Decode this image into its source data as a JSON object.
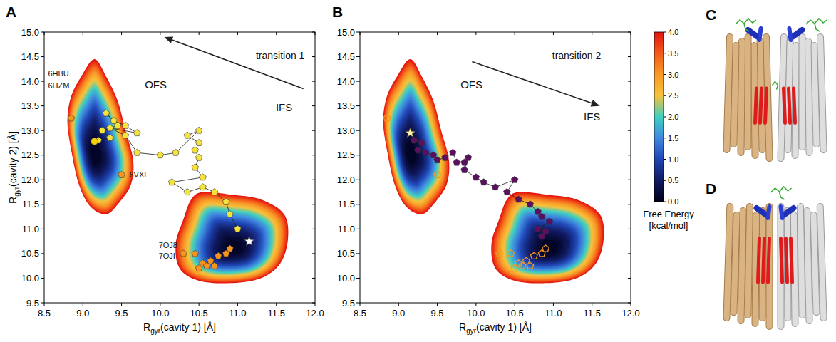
{
  "chart_data": [
    {
      "type": "scatter",
      "title": "A",
      "xlabel": {
        "text": "R",
        "sub": "gyr",
        "tail": "(cavity 1) [Å]"
      },
      "ylabel": {
        "text": "R",
        "sub": "gyr",
        "tail": "(cavity 2) [Å]"
      },
      "xlim": [
        8.5,
        12.0
      ],
      "ylim": [
        9.5,
        15.0
      ],
      "xticks": [
        8.5,
        {
          "value": 9,
          "label": "9.0"
        },
        9.5,
        {
          "value": 10,
          "label": "10.0"
        },
        10.5,
        {
          "value": 11,
          "label": "11.0"
        },
        11.5,
        {
          "value": 12,
          "label": "12.0"
        }
      ],
      "yticks": [
        9.5,
        {
          "value": 10,
          "label": "10.0"
        },
        10.5,
        {
          "value": 11,
          "label": "11.0"
        },
        11.5,
        {
          "value": 12,
          "label": "12.0"
        },
        12.5,
        {
          "value": 13,
          "label": "13.0"
        },
        13.5,
        {
          "value": 14,
          "label": "14.0"
        },
        14.5,
        {
          "value": 15,
          "label": "15.0"
        }
      ],
      "free_energy": [
        {
          "minimum": [
            9.15,
            12.5
          ],
          "boundary": [
            [
              9.15,
              14.45
            ],
            [
              9.3,
              14.1
            ],
            [
              9.45,
              13.6
            ],
            [
              9.55,
              13.0
            ],
            [
              9.65,
              12.4
            ],
            [
              9.62,
              11.9
            ],
            [
              9.45,
              11.5
            ],
            [
              9.3,
              11.3
            ],
            [
              9.1,
              11.45
            ],
            [
              8.95,
              11.9
            ],
            [
              8.85,
              12.6
            ],
            [
              8.8,
              13.2
            ],
            [
              8.85,
              13.7
            ],
            [
              8.98,
              14.1
            ]
          ]
        },
        {
          "minimum": [
            10.95,
            10.6
          ],
          "boundary": [
            [
              10.55,
              11.75
            ],
            [
              10.9,
              11.7
            ],
            [
              11.3,
              11.6
            ],
            [
              11.6,
              11.3
            ],
            [
              11.65,
              10.8
            ],
            [
              11.55,
              10.3
            ],
            [
              11.3,
              10.0
            ],
            [
              10.9,
              9.9
            ],
            [
              10.5,
              9.95
            ],
            [
              10.25,
              10.2
            ],
            [
              10.2,
              10.7
            ],
            [
              10.3,
              11.2
            ],
            [
              10.4,
              11.6
            ]
          ]
        }
      ],
      "series": [
        {
          "type": "scatter",
          "marker": "pentagon",
          "color": "#f7941d",
          "x": [
            8.85,
            9.5,
            10.3,
            10.45,
            10.55,
            10.5,
            10.6,
            10.65,
            10.75,
            10.85,
            10.9,
            10.7
          ],
          "y": [
            13.25,
            12.1,
            10.5,
            10.5,
            10.3,
            10.2,
            10.25,
            10.35,
            10.45,
            10.5,
            10.6,
            10.25
          ]
        },
        {
          "type": "line",
          "marker": "pentagon",
          "color": "#f5e23a",
          "x": [
            11.0,
            10.9,
            10.85,
            10.7,
            10.55,
            10.35,
            10.15,
            10.55,
            10.45,
            10.5,
            10.45,
            10.5,
            10.35,
            10.5,
            10.2,
            10.0,
            9.7,
            9.55,
            9.35,
            9.7,
            9.55,
            9.4,
            9.3,
            9.45,
            9.25,
            9.35,
            9.2
          ],
          "y": [
            11.0,
            11.3,
            11.55,
            11.75,
            11.85,
            11.75,
            11.95,
            12.05,
            12.25,
            12.45,
            12.6,
            12.75,
            12.9,
            13.0,
            12.55,
            12.5,
            12.55,
            12.9,
            13.05,
            12.95,
            13.1,
            13.2,
            13.35,
            13.1,
            13.0,
            12.85,
            12.8
          ]
        },
        {
          "type": "scatter",
          "marker": "star",
          "color": "#ffffff",
          "x": [
            11.15
          ],
          "y": [
            10.75
          ]
        },
        {
          "type": "scatter",
          "marker": "circle",
          "color": "#f2d300",
          "x": [
            9.15
          ],
          "y": [
            12.78
          ]
        }
      ],
      "annotations": [
        {
          "text": "6HBU",
          "x": 8.55,
          "y": 14.1
        },
        {
          "text": "6HZM",
          "x": 8.55,
          "y": 13.85
        },
        {
          "text": "6VXF",
          "x": 9.6,
          "y": 12.05
        },
        {
          "text": "7OJ8",
          "x": 9.98,
          "y": 10.62
        },
        {
          "text": "7OJI",
          "x": 9.98,
          "y": 10.4
        },
        {
          "text": "OFS",
          "x": 9.8,
          "y": 13.85
        },
        {
          "text": "IFS",
          "x": 11.6,
          "y": 13.4
        },
        {
          "text": "transition 1",
          "x": 11.55,
          "y": 14.45,
          "arrow": [
            [
              11.85,
              13.85
            ],
            [
              10.05,
              14.9
            ]
          ]
        }
      ]
    },
    {
      "type": "scatter",
      "title": "B",
      "xlabel": {
        "text": "R",
        "sub": "gyr",
        "tail": "(cavity 1) [Å]"
      },
      "xlim": [
        8.5,
        12.0
      ],
      "ylim": [
        9.5,
        15.0
      ],
      "xticks": [
        8.5,
        {
          "value": 9,
          "label": "9.0"
        },
        9.5,
        {
          "value": 10,
          "label": "10.0"
        },
        10.5,
        {
          "value": 11,
          "label": "11.0"
        },
        11.5,
        {
          "value": 12,
          "label": "12.0"
        }
      ],
      "yticks": [
        9.5,
        {
          "value": 10,
          "label": "10.0"
        },
        10.5,
        {
          "value": 11,
          "label": "11.0"
        },
        11.5,
        {
          "value": 12,
          "label": "12.0"
        },
        12.5,
        {
          "value": 13,
          "label": "13.0"
        },
        13.5,
        {
          "value": 14,
          "label": "14.0"
        },
        14.5,
        {
          "value": 15,
          "label": "15.0"
        }
      ],
      "free_energy": [
        {
          "minimum": [
            9.15,
            12.5
          ],
          "boundary": [
            [
              9.15,
              14.45
            ],
            [
              9.3,
              14.1
            ],
            [
              9.45,
              13.6
            ],
            [
              9.55,
              13.0
            ],
            [
              9.65,
              12.4
            ],
            [
              9.62,
              11.9
            ],
            [
              9.45,
              11.5
            ],
            [
              9.3,
              11.3
            ],
            [
              9.1,
              11.45
            ],
            [
              8.95,
              11.9
            ],
            [
              8.85,
              12.6
            ],
            [
              8.8,
              13.2
            ],
            [
              8.85,
              13.7
            ],
            [
              8.98,
              14.1
            ]
          ]
        },
        {
          "minimum": [
            10.95,
            10.6
          ],
          "boundary": [
            [
              10.55,
              11.75
            ],
            [
              10.9,
              11.7
            ],
            [
              11.3,
              11.6
            ],
            [
              11.6,
              11.3
            ],
            [
              11.65,
              10.8
            ],
            [
              11.55,
              10.3
            ],
            [
              11.3,
              10.0
            ],
            [
              10.9,
              9.9
            ],
            [
              10.5,
              9.95
            ],
            [
              10.25,
              10.2
            ],
            [
              10.2,
              10.7
            ],
            [
              10.3,
              11.2
            ],
            [
              10.4,
              11.6
            ]
          ]
        }
      ],
      "series": [
        {
          "type": "scatter",
          "marker": "open-pentagon",
          "color": "#f7941d",
          "x": [
            8.85,
            9.5,
            10.3,
            10.45,
            10.55,
            10.5,
            10.6,
            10.65,
            10.75,
            10.85,
            10.9,
            10.7
          ],
          "y": [
            13.25,
            12.1,
            10.5,
            10.5,
            10.3,
            10.2,
            10.25,
            10.35,
            10.45,
            10.5,
            10.6,
            10.25
          ]
        },
        {
          "type": "line",
          "marker": "pentagon",
          "color": "#5b0f5e",
          "x": [
            9.2,
            9.3,
            9.25,
            9.35,
            9.45,
            9.5,
            9.6,
            9.7,
            9.75,
            9.85,
            9.9,
            9.85,
            10.0,
            10.1,
            10.25,
            10.5,
            10.4,
            10.55,
            10.7,
            10.8,
            10.85,
            10.95,
            10.8,
            10.9,
            10.85
          ],
          "y": [
            12.8,
            12.75,
            12.6,
            12.55,
            12.5,
            12.4,
            12.45,
            12.55,
            12.35,
            12.35,
            12.45,
            12.2,
            12.05,
            11.95,
            11.85,
            12.0,
            11.75,
            11.6,
            11.5,
            11.35,
            11.25,
            11.15,
            11.0,
            10.95,
            10.85
          ]
        },
        {
          "type": "scatter",
          "marker": "star",
          "color": "#fff3a0",
          "x": [
            9.15
          ],
          "y": [
            12.95
          ]
        }
      ],
      "annotations": [
        {
          "text": "OFS",
          "x": 9.8,
          "y": 13.85
        },
        {
          "text": "IFS",
          "x": 11.5,
          "y": 13.2
        },
        {
          "text": "transition 2",
          "x": 11.3,
          "y": 14.45,
          "arrow": [
            [
              9.95,
              14.4
            ],
            [
              11.6,
              13.5
            ]
          ]
        }
      ]
    }
  ],
  "colorbar": {
    "label": "Free Energy [kcal/mol]",
    "lim": [
      0,
      4
    ],
    "ticks": [
      {
        "value": 0,
        "label": "0.0"
      },
      0.5,
      {
        "value": 1,
        "label": "1.0"
      },
      1.5,
      {
        "value": 2,
        "label": "2.0"
      },
      2.5,
      {
        "value": 3,
        "label": "3.0"
      },
      3.5,
      {
        "value": 4,
        "label": "4.0"
      }
    ],
    "colors": [
      "#000018",
      "#101a60",
      "#1f46b4",
      "#3f88e0",
      "#40d0c0",
      "#f6c23c",
      "#f89a28",
      "#f35a1a",
      "#e3140e"
    ]
  },
  "structures": [
    {
      "label": "C"
    },
    {
      "label": "D"
    }
  ]
}
